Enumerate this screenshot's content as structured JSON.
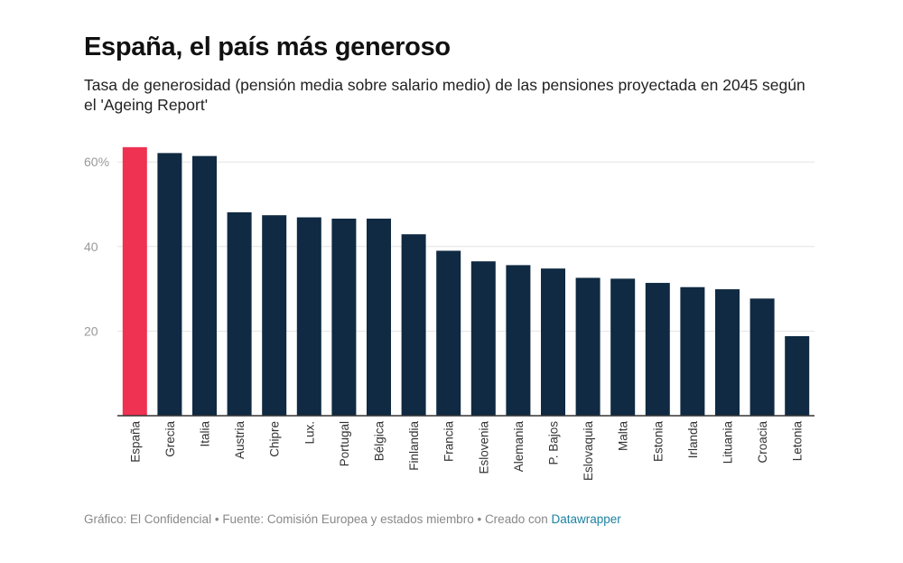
{
  "header": {
    "title": "España, el país más generoso",
    "subtitle": "Tasa de generosidad (pensión media sobre salario medio) de las pensiones proyectada en 2045 según el 'Ageing Report'"
  },
  "footer": {
    "credit": "Gráfico: El Confidencial",
    "separator": " • ",
    "source": "Fuente: Comisión Europea y estados miembro",
    "created_with": "Creado con",
    "tool": "Datawrapper"
  },
  "colors": {
    "highlight": "#ef3152",
    "bar": "#0f2a42",
    "grid": "#e4e4e4",
    "tick": "#999999"
  },
  "chart_data": {
    "type": "bar",
    "title": "España, el país más generoso",
    "xlabel": "",
    "ylabel": "",
    "ylim": [
      0,
      63
    ],
    "yticks": [
      20,
      40,
      60
    ],
    "ytick_labels": [
      "20",
      "40",
      "60%"
    ],
    "grid": true,
    "highlight_category": "España",
    "categories": [
      "España",
      "Grecia",
      "Italia",
      "Austria",
      "Chipre",
      "Lux.",
      "Portugal",
      "Bélgica",
      "Finlandia",
      "Francia",
      "Eslovenia",
      "Alemania",
      "P. Bajos",
      "Eslovaquia",
      "Malta",
      "Estonia",
      "Irlanda",
      "Lituania",
      "Croacia",
      "Letonia"
    ],
    "values": [
      63.5,
      62.1,
      61.4,
      48.1,
      47.4,
      46.9,
      46.6,
      46.6,
      42.9,
      39.0,
      36.5,
      35.6,
      34.8,
      32.6,
      32.4,
      31.4,
      30.4,
      29.9,
      27.7,
      18.8
    ]
  }
}
